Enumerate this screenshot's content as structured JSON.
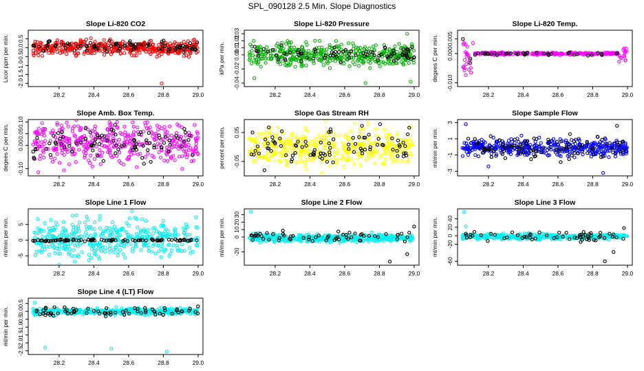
{
  "title": "SPL_090128  2.5 Min. Slope Diagnostics",
  "x_ticks": [
    "28.2",
    "28.4",
    "28.6",
    "28.8",
    "29.0"
  ],
  "chart_data": [
    {
      "type": "scatter",
      "title": "Slope Li-820 CO2",
      "ylabel": "Licor ppm per min.",
      "xlim": [
        28.03,
        29.02
      ],
      "ylim": [
        -2.1,
        0.9
      ],
      "yticks": [
        "-2.0",
        "-1.5",
        "-1.0",
        "-0.5",
        "0.0",
        "0.5"
      ],
      "yvals": [
        -2.0,
        -1.5,
        -1.0,
        -0.5,
        0.0,
        0.5
      ],
      "color": "#ff0000",
      "series": [
        {
          "name": "cloud",
          "center": 0.0,
          "spread": 0.2,
          "count": 420
        },
        {
          "name": "black",
          "center": 0.05,
          "spread": 0.15,
          "count": 90
        }
      ],
      "outliers": [
        {
          "x": 28.79,
          "y": -2.0,
          "c": "#ff0000"
        },
        {
          "x": 28.79,
          "y": -0.35,
          "c": "#ff0000"
        }
      ],
      "startBurst": 0
    },
    {
      "type": "scatter",
      "title": "Slope Li-820 Pressure",
      "ylabel": "kPa per min.",
      "xlim": [
        28.03,
        29.02
      ],
      "ylim": [
        -0.043,
        0.033
      ],
      "yticks": [
        "-0.04",
        "-0.02",
        "0.00",
        "0.01",
        "0.02",
        "0.03"
      ],
      "yvals": [
        -0.04,
        -0.02,
        0.0,
        0.01,
        0.02,
        0.03
      ],
      "color": "#00b000",
      "series": [
        {
          "name": "cloud",
          "center": 0.0,
          "spread": 0.008,
          "count": 420
        },
        {
          "name": "black",
          "center": 0.002,
          "spread": 0.006,
          "count": 80
        }
      ],
      "outliers": [
        {
          "x": 28.96,
          "y": 0.03,
          "c": "#00b000"
        },
        {
          "x": 28.72,
          "y": -0.04,
          "c": "#00b000"
        },
        {
          "x": 28.98,
          "y": -0.038,
          "c": "#00b000"
        },
        {
          "x": 28.08,
          "y": -0.033,
          "c": "#00b000"
        }
      ],
      "startBurst": 0
    },
    {
      "type": "scatter",
      "title": "Slope Li-820 Temp.",
      "ylabel": "degees C per min.",
      "xlim": [
        28.03,
        29.02
      ],
      "ylim": [
        -0.0108,
        0.0075
      ],
      "yticks": [
        "-0.010",
        "0.000",
        "0.005"
      ],
      "yvals": [
        -0.01,
        0.0,
        0.005
      ],
      "color": "#ff00ff",
      "series": [
        {
          "name": "cloud",
          "center": 0.0,
          "spread": 0.0002,
          "count": 300
        },
        {
          "name": "black",
          "center": 0.0,
          "spread": 0.0003,
          "count": 40
        }
      ],
      "outliers": [],
      "startBurst": 1
    },
    {
      "type": "scatter",
      "title": "Slope Amb. Box Temp.",
      "ylabel": "degees C per min.",
      "xlim": [
        28.03,
        29.02
      ],
      "ylim": [
        -0.125,
        0.105
      ],
      "yticks": [
        "-0.10",
        "0.00",
        "0.05",
        "0.10"
      ],
      "yvals": [
        -0.1,
        0.0,
        0.05,
        0.1
      ],
      "color": "#ff00ff",
      "series": [
        {
          "name": "cloud",
          "center": 0.01,
          "spread": 0.045,
          "count": 420
        },
        {
          "name": "black",
          "center": 0.01,
          "spread": 0.035,
          "count": 90
        }
      ],
      "outliers": [
        {
          "x": 28.49,
          "y": 0.1,
          "c": "#ff00ff"
        },
        {
          "x": 28.08,
          "y": -0.115,
          "c": "#ff00ff"
        }
      ],
      "startBurst": 0
    },
    {
      "type": "scatter",
      "title": "Slope Gas Stream RH",
      "ylabel": "percent per min.",
      "xlim": [
        28.03,
        29.02
      ],
      "ylim": [
        -0.095,
        0.09
      ],
      "yticks": [
        "-0.05",
        "0.05"
      ],
      "yvals": [
        -0.05,
        0.05
      ],
      "color": "#ffff00",
      "series": [
        {
          "name": "cloud",
          "center": 0.0,
          "spread": 0.03,
          "count": 420
        },
        {
          "name": "black",
          "center": 0.0,
          "spread": 0.035,
          "count": 90
        }
      ],
      "outliers": [
        {
          "x": 28.49,
          "y": 0.09,
          "c": "#ffff00"
        },
        {
          "x": 28.47,
          "y": -0.09,
          "c": "#ffff00"
        }
      ],
      "startBurst": 0
    },
    {
      "type": "scatter",
      "title": "Slope Sample Flow",
      "ylabel": "ml/min per min.",
      "xlim": [
        28.03,
        29.02
      ],
      "ylim": [
        -3.4,
        3.2
      ],
      "yticks": [
        "-3",
        "-1",
        "1",
        "3"
      ],
      "yvals": [
        -3,
        -1,
        1,
        3
      ],
      "color": "#0000ff",
      "series": [
        {
          "name": "cloud",
          "center": -0.1,
          "spread": 0.5,
          "count": 420
        },
        {
          "name": "black",
          "center": 0.0,
          "spread": 0.7,
          "count": 90
        }
      ],
      "outliers": [
        {
          "x": 28.07,
          "y": 2.8,
          "c": "#0000ff"
        },
        {
          "x": 28.2,
          "y": -2.4,
          "c": "#0000ff"
        },
        {
          "x": 28.86,
          "y": -3.2,
          "c": "#0000ff"
        },
        {
          "x": 28.94,
          "y": 2.6,
          "c": "#000000"
        }
      ],
      "startBurst": 0
    },
    {
      "type": "scatter",
      "title": "Slope Line 1 Flow",
      "ylabel": "ml/min per min.",
      "xlim": [
        28.03,
        29.02
      ],
      "ylim": [
        -7.5,
        9.5
      ],
      "yticks": [
        "-5",
        "0",
        "5"
      ],
      "yvals": [
        -5,
        0,
        5
      ],
      "color": "#00f0f0",
      "series": [
        {
          "name": "cloud",
          "center": 0.5,
          "spread": 3.0,
          "count": 420
        },
        {
          "name": "black",
          "center": 0.0,
          "spread": 0.15,
          "count": 90
        }
      ],
      "outliers": [
        {
          "x": 28.62,
          "y": 9.2,
          "c": "#00f0f0"
        },
        {
          "x": 28.29,
          "y": -6.8,
          "c": "#00f0f0"
        }
      ],
      "startBurst": 0
    },
    {
      "type": "scatter",
      "title": "Slope Line 2 Flow",
      "ylabel": "ml/min per min.",
      "xlim": [
        28.03,
        29.02
      ],
      "ylim": [
        -36,
        36
      ],
      "yticks": [
        "-20",
        "0",
        "10",
        "20",
        "30"
      ],
      "yvals": [
        -20,
        0,
        10,
        20,
        30
      ],
      "color": "#00f0f0",
      "series": [
        {
          "name": "cloud",
          "center": -1.5,
          "spread": 2.5,
          "count": 420
        },
        {
          "name": "black",
          "center": 0.0,
          "spread": 4.0,
          "count": 60
        }
      ],
      "outliers": [
        {
          "x": 28.06,
          "y": 34,
          "c": "#00f0f0"
        },
        {
          "x": 28.86,
          "y": -33,
          "c": "#000000"
        },
        {
          "x": 28.96,
          "y": -23,
          "c": "#000000"
        },
        {
          "x": 29.0,
          "y": 14,
          "c": "#000000"
        }
      ],
      "startBurst": 0
    },
    {
      "type": "scatter",
      "title": "Slope Line 3 Flow",
      "ylabel": "ml/min per min.",
      "xlim": [
        28.03,
        29.02
      ],
      "ylim": [
        -66,
        60
      ],
      "yticks": [
        "-60",
        "-20",
        "0",
        "20",
        "40"
      ],
      "yvals": [
        -60,
        -20,
        0,
        20,
        40
      ],
      "color": "#00f0f0",
      "series": [
        {
          "name": "cloud",
          "center": -2.0,
          "spread": 3.0,
          "count": 420
        },
        {
          "name": "black",
          "center": 0.0,
          "spread": 6.0,
          "count": 60
        }
      ],
      "outliers": [
        {
          "x": 28.06,
          "y": 56,
          "c": "#00f0f0"
        },
        {
          "x": 28.07,
          "y": 22,
          "c": "#00f0f0"
        },
        {
          "x": 28.87,
          "y": -60,
          "c": "#000000"
        },
        {
          "x": 28.92,
          "y": -38,
          "c": "#000000"
        },
        {
          "x": 28.98,
          "y": 18,
          "c": "#000000"
        }
      ],
      "startBurst": 0
    },
    {
      "type": "scatter",
      "title": "Slope Line 4 (LT) Flow",
      "ylabel": "ml/min per min.",
      "xlim": [
        28.03,
        29.02
      ],
      "ylim": [
        -2.65,
        0.75
      ],
      "yticks": [
        "-2.5",
        "-2.0",
        "-1.5",
        "-1.0",
        "-0.5",
        "0.0",
        "0.5"
      ],
      "yvals": [
        -2.5,
        -2.0,
        -1.5,
        -1.0,
        -0.5,
        0.0,
        0.5
      ],
      "color": "#00f0f0",
      "series": [
        {
          "name": "cloud",
          "center": 0.0,
          "spread": 0.1,
          "count": 420
        },
        {
          "name": "black",
          "center": 0.0,
          "spread": 0.15,
          "count": 70
        }
      ],
      "outliers": [
        {
          "x": 28.12,
          "y": -2.3,
          "c": "#00f0f0"
        },
        {
          "x": 28.5,
          "y": -2.35,
          "c": "#00f0f0"
        },
        {
          "x": 28.82,
          "y": -2.55,
          "c": "#00f0f0"
        },
        {
          "x": 28.06,
          "y": 0.55,
          "c": "#00f0f0"
        }
      ],
      "startBurst": 0
    }
  ]
}
